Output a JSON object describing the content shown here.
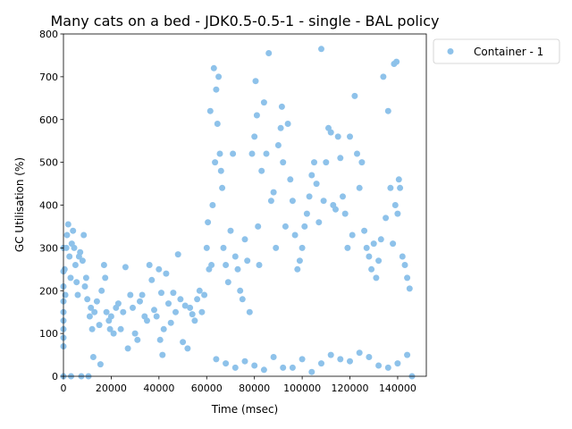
{
  "chart_data": {
    "type": "scatter",
    "title": "Many cats on a bed - JDK0.5-0.5-1 - single -  BAL policy",
    "xlabel": "Time (msec)",
    "ylabel": "GC Utilisation (%)",
    "xlim": [
      0,
      152000
    ],
    "ylim": [
      0,
      800
    ],
    "xticks": [
      0,
      20000,
      40000,
      60000,
      80000,
      100000,
      120000,
      140000
    ],
    "xtick_labels": [
      "0",
      "20000",
      "40000",
      "60000",
      "80000",
      "100000",
      "120000",
      "140000"
    ],
    "yticks": [
      0,
      100,
      200,
      300,
      400,
      500,
      600,
      700,
      800
    ],
    "ytick_labels": [
      "0",
      "100",
      "200",
      "300",
      "400",
      "500",
      "600",
      "700",
      "800"
    ],
    "grid": false,
    "legend_position": "outside-top-right",
    "series": [
      {
        "name": "Container - 1",
        "color": "#8ec2ea",
        "points": [
          [
            0,
            0
          ],
          [
            0,
            70
          ],
          [
            0,
            90
          ],
          [
            0,
            110
          ],
          [
            0,
            130
          ],
          [
            0,
            150
          ],
          [
            0,
            175
          ],
          [
            0,
            210
          ],
          [
            0,
            245
          ],
          [
            0,
            300
          ],
          [
            500,
            250
          ],
          [
            800,
            190
          ],
          [
            1200,
            300
          ],
          [
            1500,
            330
          ],
          [
            2000,
            355
          ],
          [
            2500,
            280
          ],
          [
            3000,
            230
          ],
          [
            3200,
            0
          ],
          [
            3500,
            310
          ],
          [
            4000,
            340
          ],
          [
            4500,
            300
          ],
          [
            5000,
            260
          ],
          [
            5500,
            220
          ],
          [
            6000,
            190
          ],
          [
            6500,
            280
          ],
          [
            7000,
            290
          ],
          [
            7500,
            0
          ],
          [
            8000,
            270
          ],
          [
            8500,
            330
          ],
          [
            9000,
            210
          ],
          [
            9500,
            230
          ],
          [
            10000,
            180
          ],
          [
            10500,
            0
          ],
          [
            11000,
            140
          ],
          [
            11500,
            160
          ],
          [
            12000,
            110
          ],
          [
            12500,
            45
          ],
          [
            13000,
            150
          ],
          [
            14000,
            175
          ],
          [
            15000,
            120
          ],
          [
            15500,
            28
          ],
          [
            16000,
            200
          ],
          [
            17000,
            260
          ],
          [
            17500,
            230
          ],
          [
            18000,
            150
          ],
          [
            19000,
            130
          ],
          [
            19500,
            110
          ],
          [
            20000,
            140
          ],
          [
            21000,
            100
          ],
          [
            22000,
            160
          ],
          [
            23000,
            170
          ],
          [
            24000,
            110
          ],
          [
            25000,
            150
          ],
          [
            26000,
            255
          ],
          [
            27000,
            65
          ],
          [
            28000,
            190
          ],
          [
            29000,
            160
          ],
          [
            30000,
            100
          ],
          [
            31000,
            85
          ],
          [
            32000,
            175
          ],
          [
            33000,
            190
          ],
          [
            34000,
            140
          ],
          [
            35000,
            130
          ],
          [
            36000,
            260
          ],
          [
            37000,
            225
          ],
          [
            38000,
            155
          ],
          [
            39000,
            140
          ],
          [
            40000,
            250
          ],
          [
            40500,
            85
          ],
          [
            41000,
            195
          ],
          [
            41500,
            50
          ],
          [
            42000,
            110
          ],
          [
            43000,
            240
          ],
          [
            44000,
            170
          ],
          [
            45000,
            125
          ],
          [
            46000,
            195
          ],
          [
            47000,
            150
          ],
          [
            48000,
            285
          ],
          [
            49000,
            180
          ],
          [
            50000,
            80
          ],
          [
            51000,
            165
          ],
          [
            52000,
            65
          ],
          [
            53000,
            160
          ],
          [
            54000,
            145
          ],
          [
            55000,
            130
          ],
          [
            56000,
            180
          ],
          [
            57000,
            200
          ],
          [
            58000,
            150
          ],
          [
            59000,
            190
          ],
          [
            60000,
            300
          ],
          [
            60500,
            360
          ],
          [
            61000,
            250
          ],
          [
            61500,
            620
          ],
          [
            62000,
            260
          ],
          [
            62500,
            400
          ],
          [
            63000,
            720
          ],
          [
            63500,
            500
          ],
          [
            64000,
            670
          ],
          [
            64500,
            590
          ],
          [
            65000,
            700
          ],
          [
            65500,
            520
          ],
          [
            66000,
            480
          ],
          [
            66500,
            440
          ],
          [
            67000,
            300
          ],
          [
            68000,
            260
          ],
          [
            69000,
            220
          ],
          [
            70000,
            340
          ],
          [
            71000,
            520
          ],
          [
            72000,
            280
          ],
          [
            73000,
            250
          ],
          [
            74000,
            200
          ],
          [
            75000,
            180
          ],
          [
            76000,
            320
          ],
          [
            77000,
            270
          ],
          [
            78000,
            150
          ],
          [
            79000,
            520
          ],
          [
            80000,
            560
          ],
          [
            80500,
            690
          ],
          [
            81000,
            610
          ],
          [
            81500,
            350
          ],
          [
            82000,
            260
          ],
          [
            83000,
            480
          ],
          [
            84000,
            640
          ],
          [
            85000,
            520
          ],
          [
            86000,
            755
          ],
          [
            87000,
            410
          ],
          [
            88000,
            430
          ],
          [
            89000,
            300
          ],
          [
            90000,
            540
          ],
          [
            91000,
            580
          ],
          [
            91500,
            630
          ],
          [
            92000,
            500
          ],
          [
            93000,
            350
          ],
          [
            94000,
            590
          ],
          [
            95000,
            460
          ],
          [
            96000,
            410
          ],
          [
            97000,
            330
          ],
          [
            98000,
            250
          ],
          [
            99000,
            270
          ],
          [
            100000,
            300
          ],
          [
            101000,
            350
          ],
          [
            102000,
            380
          ],
          [
            103000,
            420
          ],
          [
            104000,
            470
          ],
          [
            105000,
            500
          ],
          [
            106000,
            450
          ],
          [
            107000,
            360
          ],
          [
            108000,
            765
          ],
          [
            109000,
            410
          ],
          [
            110000,
            500
          ],
          [
            111000,
            580
          ],
          [
            112000,
            570
          ],
          [
            113000,
            400
          ],
          [
            114000,
            390
          ],
          [
            115000,
            560
          ],
          [
            116000,
            510
          ],
          [
            117000,
            420
          ],
          [
            118000,
            380
          ],
          [
            119000,
            300
          ],
          [
            120000,
            560
          ],
          [
            121000,
            330
          ],
          [
            122000,
            655
          ],
          [
            123000,
            520
          ],
          [
            124000,
            440
          ],
          [
            125000,
            500
          ],
          [
            126000,
            340
          ],
          [
            127000,
            300
          ],
          [
            128000,
            280
          ],
          [
            129000,
            250
          ],
          [
            130000,
            310
          ],
          [
            131000,
            230
          ],
          [
            132000,
            270
          ],
          [
            133000,
            320
          ],
          [
            134000,
            700
          ],
          [
            135000,
            370
          ],
          [
            136000,
            620
          ],
          [
            137000,
            440
          ],
          [
            138000,
            310
          ],
          [
            138500,
            730
          ],
          [
            139000,
            400
          ],
          [
            139500,
            735
          ],
          [
            140000,
            380
          ],
          [
            140500,
            460
          ],
          [
            141000,
            440
          ],
          [
            142000,
            280
          ],
          [
            143000,
            260
          ],
          [
            144000,
            230
          ],
          [
            145000,
            205
          ],
          [
            146000,
            0
          ],
          [
            96000,
            20
          ],
          [
            100000,
            40
          ],
          [
            104000,
            10
          ],
          [
            108000,
            30
          ],
          [
            112000,
            50
          ],
          [
            64000,
            40
          ],
          [
            68000,
            30
          ],
          [
            72000,
            20
          ],
          [
            76000,
            35
          ],
          [
            80000,
            25
          ],
          [
            84000,
            15
          ],
          [
            88000,
            45
          ],
          [
            92000,
            20
          ],
          [
            116000,
            40
          ],
          [
            120000,
            35
          ],
          [
            124000,
            55
          ],
          [
            128000,
            45
          ],
          [
            132000,
            25
          ],
          [
            136000,
            20
          ],
          [
            140000,
            30
          ],
          [
            144000,
            50
          ]
        ]
      }
    ]
  }
}
